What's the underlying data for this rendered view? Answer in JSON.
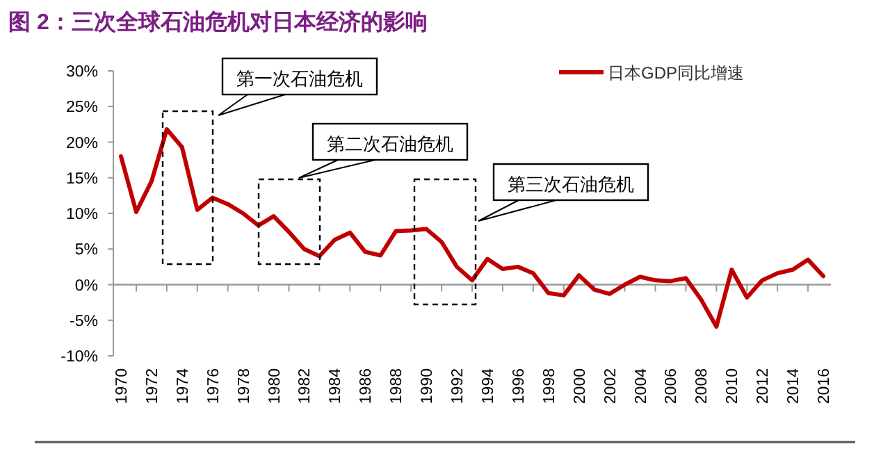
{
  "chart_data": {
    "type": "line",
    "title": "图 2：三次全球石油危机对日本经济的影响",
    "categories": [
      "1970",
      null,
      "1972",
      null,
      "1974",
      null,
      "1976",
      null,
      "1978",
      null,
      "1980",
      null,
      "1982",
      null,
      "1984",
      null,
      "1986",
      null,
      "1988",
      null,
      "1990",
      null,
      "1992",
      null,
      "1994",
      null,
      "1996",
      null,
      "1998",
      null,
      "2000",
      null,
      "2002",
      null,
      "2004",
      null,
      "2006",
      null,
      "2008",
      null,
      "2010",
      null,
      "2012",
      null,
      "2014",
      null,
      "2016"
    ],
    "series": [
      {
        "name": "日本GDP同比增速",
        "color": "#c00000",
        "values": [
          18,
          10.2,
          14.5,
          21.8,
          19.3,
          10.5,
          12.2,
          11.3,
          10,
          8.3,
          9.6,
          7.4,
          5,
          4,
          6.3,
          7.3,
          4.6,
          4.1,
          7.5,
          7.6,
          7.8,
          6,
          2.5,
          0.6,
          3.6,
          2.2,
          2.5,
          1.6,
          -1.2,
          -1.5,
          1.3,
          -0.7,
          -1.3,
          0,
          1.1,
          0.6,
          0.5,
          0.9,
          -2.1,
          -5.9,
          2.1,
          -1.8,
          0.6,
          1.6,
          2.1,
          3.5,
          1.2
        ]
      }
    ],
    "ylim": [
      -10,
      30
    ],
    "yticks": [
      {
        "value": -10,
        "label": "-10%"
      },
      {
        "value": -5,
        "label": "-5%"
      },
      {
        "value": 0,
        "label": "0%"
      },
      {
        "value": 5,
        "label": "5%"
      },
      {
        "value": 10,
        "label": "10%"
      },
      {
        "value": 15,
        "label": "15%"
      },
      {
        "value": 20,
        "label": "20%"
      },
      {
        "value": 25,
        "label": "25%"
      },
      {
        "value": 30,
        "label": "30%"
      }
    ],
    "legend": "top right",
    "annotations": [
      "第一次石油危机",
      "第二次石油危机",
      "第三次石油危机"
    ]
  }
}
